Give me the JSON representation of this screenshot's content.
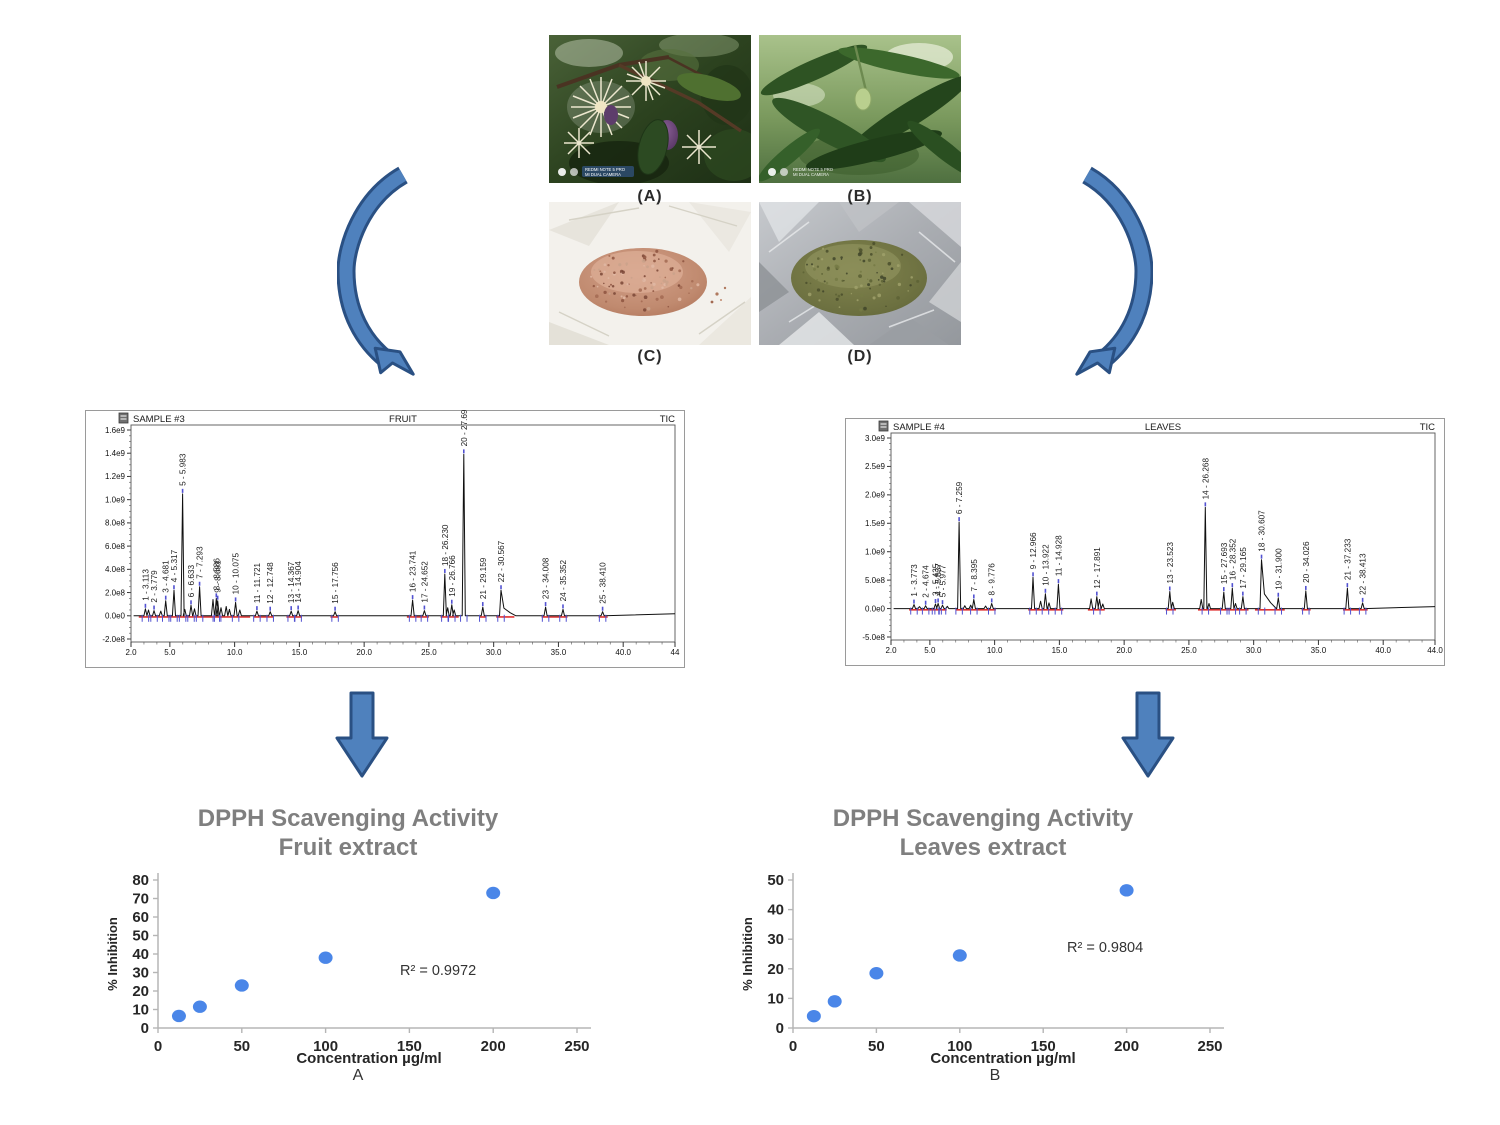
{
  "photos": {
    "labels": [
      "(A)",
      "(B)",
      "(C)",
      "(D)"
    ],
    "watermark_line1": "REDMI NOTE 5 PRO",
    "watermark_line2": "MI DUAL CAMERA"
  },
  "colors": {
    "arrow_fill": "#4f81bd",
    "arrow_outline": "#2a5083",
    "scatter_dot": "#4a86e8",
    "title_gray": "#7f7f7f",
    "axis_gray": "#b5b5b5",
    "tick_text": "#262626",
    "trace_black": "#101010",
    "baseline_red": "#e03232",
    "marker_blue": "#5151d1"
  },
  "chart_data": [
    {
      "type": "line",
      "kind": "chromatogram",
      "sample": "SAMPLE #3",
      "title": "FRUIT",
      "signal": "TIC",
      "x_range": [
        2.0,
        44.0
      ],
      "x_ticks": [
        {
          "v": 2,
          "label": "2.0"
        },
        {
          "v": 5,
          "label": "5.0"
        },
        {
          "v": 10,
          "label": "10.0"
        },
        {
          "v": 15,
          "label": "15.0"
        },
        {
          "v": 20,
          "label": "20.0"
        },
        {
          "v": 25,
          "label": "25.0"
        },
        {
          "v": 30,
          "label": "30.0"
        },
        {
          "v": 35,
          "label": "35.0"
        },
        {
          "v": 40,
          "label": "40.0"
        },
        {
          "v": 44,
          "label": "44"
        }
      ],
      "y_axis": [
        {
          "v": 16,
          "label": "1.6e9"
        },
        {
          "v": 14,
          "label": "1.4e9"
        },
        {
          "v": 12,
          "label": "1.2e9"
        },
        {
          "v": 10,
          "label": "1.0e9"
        },
        {
          "v": 8,
          "label": "8.0e8"
        },
        {
          "v": 6,
          "label": "6.0e8"
        },
        {
          "v": 4,
          "label": "4.0e8"
        },
        {
          "v": 2,
          "label": "2.0e8"
        },
        {
          "v": 0,
          "label": "0.0e0"
        },
        {
          "v": -2,
          "label": "-2.0e8"
        }
      ],
      "y_unit_e8": true,
      "peaks": [
        {
          "n": 1,
          "rt": "3.113",
          "h": 0.6
        },
        {
          "n": 2,
          "rt": "3.779",
          "h": 0.45
        },
        {
          "n": 3,
          "rt": "4.681",
          "h": 1.3
        },
        {
          "n": 4,
          "rt": "5.317",
          "h": 2.2
        },
        {
          "n": 5,
          "rt": "5.983",
          "h": 10.5
        },
        {
          "n": 6,
          "rt": "6.633",
          "h": 0.9
        },
        {
          "n": 7,
          "rt": "7.293",
          "h": 2.5
        },
        {
          "n": 8,
          "rt": "8.586",
          "h": 1.5
        },
        {
          "n": 9,
          "rt": "8.691",
          "h": 1.3
        },
        {
          "n": 10,
          "rt": "10.075",
          "h": 1.15
        },
        {
          "n": 11,
          "rt": "11.721",
          "h": 0.4
        },
        {
          "n": 12,
          "rt": "12.748",
          "h": 0.35
        },
        {
          "n": 13,
          "rt": "14.367",
          "h": 0.4
        },
        {
          "n": 14,
          "rt": "14.904",
          "h": 0.45
        },
        {
          "n": 15,
          "rt": "17.756",
          "h": 0.35
        },
        {
          "n": 16,
          "rt": "23.741",
          "h": 1.35
        },
        {
          "n": 17,
          "rt": "24.652",
          "h": 0.45
        },
        {
          "n": 18,
          "rt": "26.230",
          "h": 3.6
        },
        {
          "n": 19,
          "rt": "26.766",
          "h": 0.95
        },
        {
          "n": 20,
          "rt": "27.693",
          "h": 13.9
        },
        {
          "n": 21,
          "rt": "29.159",
          "h": 0.75
        },
        {
          "n": 22,
          "rt": "30.567",
          "h": 2.2
        },
        {
          "n": 23,
          "rt": "34.008",
          "h": 0.75
        },
        {
          "n": 24,
          "rt": "35.352",
          "h": 0.55
        },
        {
          "n": 25,
          "rt": "38.410",
          "h": 0.35
        }
      ],
      "minor_peaks": [
        [
          3.35,
          0.5
        ],
        [
          4.3,
          0.4
        ],
        [
          6.15,
          0.55
        ],
        [
          6.9,
          0.6
        ],
        [
          8.33,
          1.4
        ],
        [
          8.95,
          0.7
        ],
        [
          9.35,
          0.8
        ],
        [
          9.6,
          0.55
        ],
        [
          10.4,
          0.5
        ],
        [
          26.45,
          0.7
        ],
        [
          26.95,
          0.5
        ]
      ],
      "broad_peaks": [
        30.567
      ],
      "red_segments": [
        [
          2.6,
          11.2
        ],
        [
          11.5,
          13.0
        ],
        [
          14.0,
          15.2
        ],
        [
          17.4,
          18.0
        ],
        [
          23.3,
          25.0
        ],
        [
          25.9,
          27.3
        ],
        [
          28.9,
          29.4
        ],
        [
          30.2,
          31.6
        ],
        [
          33.7,
          35.7
        ],
        [
          38.1,
          38.8
        ]
      ]
    },
    {
      "type": "line",
      "kind": "chromatogram",
      "sample": "SAMPLE #4",
      "title": "LEAVES",
      "signal": "TIC",
      "x_range": [
        2.0,
        44.0
      ],
      "x_ticks": [
        {
          "v": 2,
          "label": "2.0"
        },
        {
          "v": 5,
          "label": "5.0"
        },
        {
          "v": 10,
          "label": "10.0"
        },
        {
          "v": 15,
          "label": "15.0"
        },
        {
          "v": 20,
          "label": "20.0"
        },
        {
          "v": 25,
          "label": "25.0"
        },
        {
          "v": 30,
          "label": "30.0"
        },
        {
          "v": 35,
          "label": "35.0"
        },
        {
          "v": 40,
          "label": "40.0"
        },
        {
          "v": 44,
          "label": "44.0"
        }
      ],
      "y_axis": [
        {
          "v": 30,
          "label": "3.0e9"
        },
        {
          "v": 25,
          "label": "2.5e9"
        },
        {
          "v": 20,
          "label": "2.0e9"
        },
        {
          "v": 15,
          "label": "1.5e9"
        },
        {
          "v": 10,
          "label": "1.0e9"
        },
        {
          "v": 5,
          "label": "5.0e8"
        },
        {
          "v": 0,
          "label": "0.0e0"
        },
        {
          "v": -5,
          "label": "-5.0e8"
        }
      ],
      "y_unit_e8": true,
      "peaks": [
        {
          "n": 1,
          "rt": "3.773",
          "h": 0.7
        },
        {
          "n": 2,
          "rt": "4.674",
          "h": 0.5
        },
        {
          "n": 3,
          "rt": "5.435",
          "h": 0.8
        },
        {
          "n": 4,
          "rt": "5.637",
          "h": 0.9
        },
        {
          "n": 5,
          "rt": "5.977",
          "h": 0.6
        },
        {
          "n": 6,
          "rt": "7.259",
          "h": 15.2
        },
        {
          "n": 7,
          "rt": "8.395",
          "h": 1.6
        },
        {
          "n": 8,
          "rt": "9.776",
          "h": 0.9
        },
        {
          "n": 9,
          "rt": "12.966",
          "h": 5.5
        },
        {
          "n": 10,
          "rt": "13.922",
          "h": 2.6
        },
        {
          "n": 11,
          "rt": "14.928",
          "h": 4.3
        },
        {
          "n": 12,
          "rt": "17.891",
          "h": 2.1
        },
        {
          "n": 13,
          "rt": "23.523",
          "h": 3.0
        },
        {
          "n": 14,
          "rt": "26.268",
          "h": 17.8
        },
        {
          "n": 15,
          "rt": "27.693",
          "h": 2.9
        },
        {
          "n": 16,
          "rt": "28.352",
          "h": 3.6
        },
        {
          "n": 17,
          "rt": "29.165",
          "h": 2.1
        },
        {
          "n": 18,
          "rt": "30.607",
          "h": 8.6
        },
        {
          "n": 19,
          "rt": "31.900",
          "h": 1.9
        },
        {
          "n": 20,
          "rt": "34.026",
          "h": 3.1
        },
        {
          "n": 21,
          "rt": "37.233",
          "h": 3.6
        },
        {
          "n": 22,
          "rt": "38.413",
          "h": 1.0
        }
      ],
      "minor_peaks": [
        [
          4.2,
          0.35
        ],
        [
          6.35,
          0.4
        ],
        [
          7.7,
          0.5
        ],
        [
          8.15,
          0.6
        ],
        [
          9.3,
          0.45
        ],
        [
          13.55,
          1.3
        ],
        [
          14.2,
          1.0
        ],
        [
          17.45,
          1.7
        ],
        [
          18.1,
          1.6
        ],
        [
          18.35,
          0.8
        ],
        [
          23.75,
          1.1
        ],
        [
          25.95,
          1.6
        ],
        [
          26.55,
          0.9
        ],
        [
          28.6,
          0.9
        ]
      ],
      "broad_peaks": [
        30.607
      ],
      "red_segments": [
        [
          3.4,
          6.3
        ],
        [
          7.0,
          10.1
        ],
        [
          12.6,
          15.3
        ],
        [
          17.2,
          18.5
        ],
        [
          23.2,
          24.0
        ],
        [
          25.7,
          29.6
        ],
        [
          30.1,
          32.4
        ],
        [
          33.7,
          34.4
        ],
        [
          36.9,
          38.8
        ]
      ]
    },
    {
      "type": "scatter",
      "title": "DPPH Scavenging Activity",
      "subtitle": "Fruit extract",
      "xlabel": "Concentration µg/ml",
      "ylabel": "% Inhibition",
      "x": [
        12.5,
        25,
        50,
        100,
        200
      ],
      "y": [
        6.5,
        11.5,
        23,
        38,
        73
      ],
      "r2_label": "R² = 0.9972",
      "panel_label": "A",
      "xlim": [
        0,
        250
      ],
      "ylim": [
        0,
        80
      ],
      "x_ticks": [
        0,
        50,
        100,
        150,
        200,
        250
      ],
      "y_ticks": [
        0,
        10,
        20,
        30,
        40,
        50,
        60,
        70,
        80
      ],
      "grid": false,
      "legend": "none"
    },
    {
      "type": "scatter",
      "title": "DPPH Scavenging Activity",
      "subtitle": "Leaves extract",
      "xlabel": "Concentration µg/ml",
      "ylabel": "% Inhibition",
      "x": [
        12.5,
        25,
        50,
        100,
        200
      ],
      "y": [
        4,
        9,
        18.5,
        24.5,
        46.5
      ],
      "r2_label": "R² = 0.9804",
      "panel_label": "B",
      "xlim": [
        0,
        250
      ],
      "ylim": [
        0,
        50
      ],
      "x_ticks": [
        0,
        50,
        100,
        150,
        200,
        250
      ],
      "y_ticks": [
        0,
        10,
        20,
        30,
        40,
        50
      ],
      "grid": false,
      "legend": "none"
    }
  ]
}
